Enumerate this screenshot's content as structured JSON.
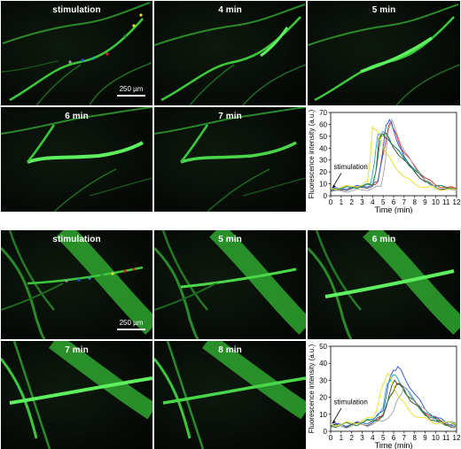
{
  "top_set": {
    "panels": [
      {
        "label": "stimulation"
      },
      {
        "label": "4 min"
      },
      {
        "label": "5 min"
      },
      {
        "label": "6 min"
      },
      {
        "label": "7 min"
      }
    ],
    "scale_bar": "250 µm"
  },
  "bottom_set": {
    "panels": [
      {
        "label": "stimulation"
      },
      {
        "label": "5 min"
      },
      {
        "label": "6 min"
      },
      {
        "label": "7 min"
      },
      {
        "label": "8 min"
      }
    ],
    "scale_bar": "250 µm"
  },
  "colors": {
    "hypha": "#3cc83c",
    "background": "#050805",
    "trace_colors": [
      "#e02020",
      "#2050e0",
      "#20a8b0",
      "#404040",
      "#2a9040",
      "#a0a0a0",
      "#e8e020"
    ]
  },
  "chart_data": [
    {
      "type": "line",
      "xlabel": "Time (min)",
      "ylabel": "Fluorescence intensity (a.u.)",
      "xlim": [
        0,
        12
      ],
      "ylim": [
        0,
        70
      ],
      "xticks": [
        "0",
        "1",
        "2",
        "3",
        "4",
        "5",
        "6",
        "7",
        "8",
        "9",
        "10",
        "11",
        "12"
      ],
      "yticks": [
        "0",
        "10",
        "20",
        "30",
        "40",
        "50",
        "60",
        "70"
      ],
      "annotation": "stimulation",
      "series": [
        {
          "color": "#e02020",
          "x": [
            0,
            1,
            2,
            3,
            4,
            4.5,
            5,
            5.5,
            5.8,
            6,
            6.5,
            7,
            8,
            9,
            10,
            11,
            12
          ],
          "y": [
            5,
            6,
            7,
            8,
            9,
            12,
            35,
            58,
            62,
            56,
            45,
            36,
            25,
            15,
            9,
            7,
            6
          ]
        },
        {
          "color": "#2050e0",
          "x": [
            0,
            1,
            2,
            3,
            4,
            4.5,
            5,
            5.3,
            5.6,
            6,
            6.5,
            7,
            8,
            9,
            10,
            11,
            12
          ],
          "y": [
            5,
            6,
            7,
            8,
            9,
            12,
            40,
            60,
            64,
            55,
            42,
            33,
            22,
            13,
            8,
            7,
            6
          ]
        },
        {
          "color": "#20a8b0",
          "x": [
            0,
            1,
            2,
            3,
            3.8,
            4.2,
            4.5,
            5,
            5.5,
            6,
            7,
            8,
            9,
            10,
            11,
            12
          ],
          "y": [
            5,
            6,
            7,
            8,
            10,
            30,
            52,
            54,
            48,
            42,
            32,
            22,
            13,
            8,
            7,
            6
          ]
        },
        {
          "color": "#404040",
          "x": [
            0,
            1,
            2,
            3,
            4,
            4.3,
            4.6,
            5,
            5.5,
            6,
            7,
            8,
            9,
            10,
            11,
            12
          ],
          "y": [
            4,
            5,
            6,
            7,
            8,
            20,
            48,
            52,
            47,
            40,
            30,
            20,
            12,
            7,
            6,
            5
          ]
        },
        {
          "color": "#2a9040",
          "x": [
            0,
            1,
            2,
            3,
            4,
            4.4,
            4.8,
            5.2,
            5.6,
            6,
            7,
            8,
            9,
            10,
            11,
            12
          ],
          "y": [
            5,
            6,
            7,
            8,
            9,
            25,
            50,
            53,
            48,
            42,
            31,
            21,
            13,
            8,
            7,
            6
          ]
        },
        {
          "color": "#a0a0a0",
          "x": [
            0,
            1,
            2,
            3,
            4,
            4.8,
            5.2,
            5.5,
            5.8,
            6.2,
            7,
            8,
            9,
            10,
            11,
            12
          ],
          "y": [
            3,
            4,
            4,
            5,
            6,
            8,
            28,
            55,
            64,
            55,
            38,
            24,
            13,
            7,
            5,
            4
          ]
        },
        {
          "color": "#e8e020",
          "x": [
            0,
            1,
            2,
            3,
            3.5,
            3.8,
            4,
            4.3,
            4.8,
            5.3,
            6,
            7,
            8,
            9,
            10,
            11,
            12
          ],
          "y": [
            6,
            7,
            8,
            9,
            12,
            35,
            58,
            56,
            46,
            36,
            26,
            16,
            10,
            7,
            6,
            5,
            5
          ]
        }
      ]
    },
    {
      "type": "line",
      "xlabel": "Time (min)",
      "ylabel": "Fluorescence intensity (a.u.)",
      "xlim": [
        0,
        12
      ],
      "ylim": [
        0,
        50
      ],
      "xticks": [
        "0",
        "1",
        "2",
        "3",
        "4",
        "5",
        "6",
        "7",
        "8",
        "9",
        "10",
        "11",
        "12"
      ],
      "yticks": [
        "0",
        "10",
        "20",
        "30",
        "40",
        "50"
      ],
      "annotation": "stimulation",
      "series": [
        {
          "color": "#e02020",
          "x": [
            0,
            1,
            2,
            3,
            4,
            5,
            5.8,
            6.3,
            6.8,
            7.5,
            8.5,
            9.5,
            10.5,
            11.5,
            12
          ],
          "y": [
            3,
            4,
            4,
            5,
            6,
            10,
            22,
            28,
            26,
            20,
            14,
            9,
            6,
            4,
            4
          ]
        },
        {
          "color": "#2050e0",
          "x": [
            0,
            1,
            2,
            3,
            4,
            5,
            5.5,
            6,
            6.4,
            7,
            8,
            9,
            10,
            11,
            12
          ],
          "y": [
            3,
            4,
            4,
            5,
            6,
            12,
            28,
            36,
            38,
            32,
            22,
            13,
            8,
            5,
            4
          ]
        },
        {
          "color": "#20a8b0",
          "x": [
            0,
            1,
            2,
            3,
            4,
            5,
            5.4,
            5.9,
            6.4,
            7,
            8,
            9,
            10,
            11,
            12
          ],
          "y": [
            3,
            4,
            4,
            5,
            7,
            14,
            28,
            33,
            31,
            26,
            18,
            11,
            7,
            5,
            4
          ]
        },
        {
          "color": "#404040",
          "x": [
            0,
            1,
            2,
            3,
            4,
            5,
            5.6,
            6.1,
            6.6,
            7.2,
            8,
            9,
            10,
            11,
            12
          ],
          "y": [
            3,
            3,
            4,
            4,
            5,
            9,
            22,
            30,
            28,
            22,
            16,
            10,
            6,
            4,
            3
          ]
        },
        {
          "color": "#2a9040",
          "x": [
            0,
            1,
            2,
            3,
            4,
            5,
            5.6,
            6.2,
            6.8,
            7.5,
            8.5,
            9.5,
            10.5,
            11.5,
            12
          ],
          "y": [
            3,
            4,
            4,
            5,
            6,
            9,
            20,
            27,
            26,
            20,
            13,
            8,
            5,
            4,
            3
          ]
        },
        {
          "color": "#a0a0a0",
          "x": [
            0,
            1,
            2,
            3,
            4,
            5,
            6,
            6.5,
            7,
            7.5,
            8.5,
            9.5,
            10.5,
            11.5,
            12
          ],
          "y": [
            2,
            3,
            3,
            4,
            4,
            6,
            12,
            20,
            26,
            22,
            15,
            9,
            5,
            3,
            3
          ]
        },
        {
          "color": "#e8e020",
          "x": [
            0,
            1,
            2,
            3,
            4,
            4.5,
            5,
            5.4,
            5.8,
            6.5,
            7.5,
            8.5,
            9.5,
            10.5,
            12
          ],
          "y": [
            4,
            4,
            5,
            6,
            8,
            15,
            28,
            34,
            30,
            20,
            12,
            8,
            6,
            5,
            4
          ]
        }
      ]
    }
  ]
}
